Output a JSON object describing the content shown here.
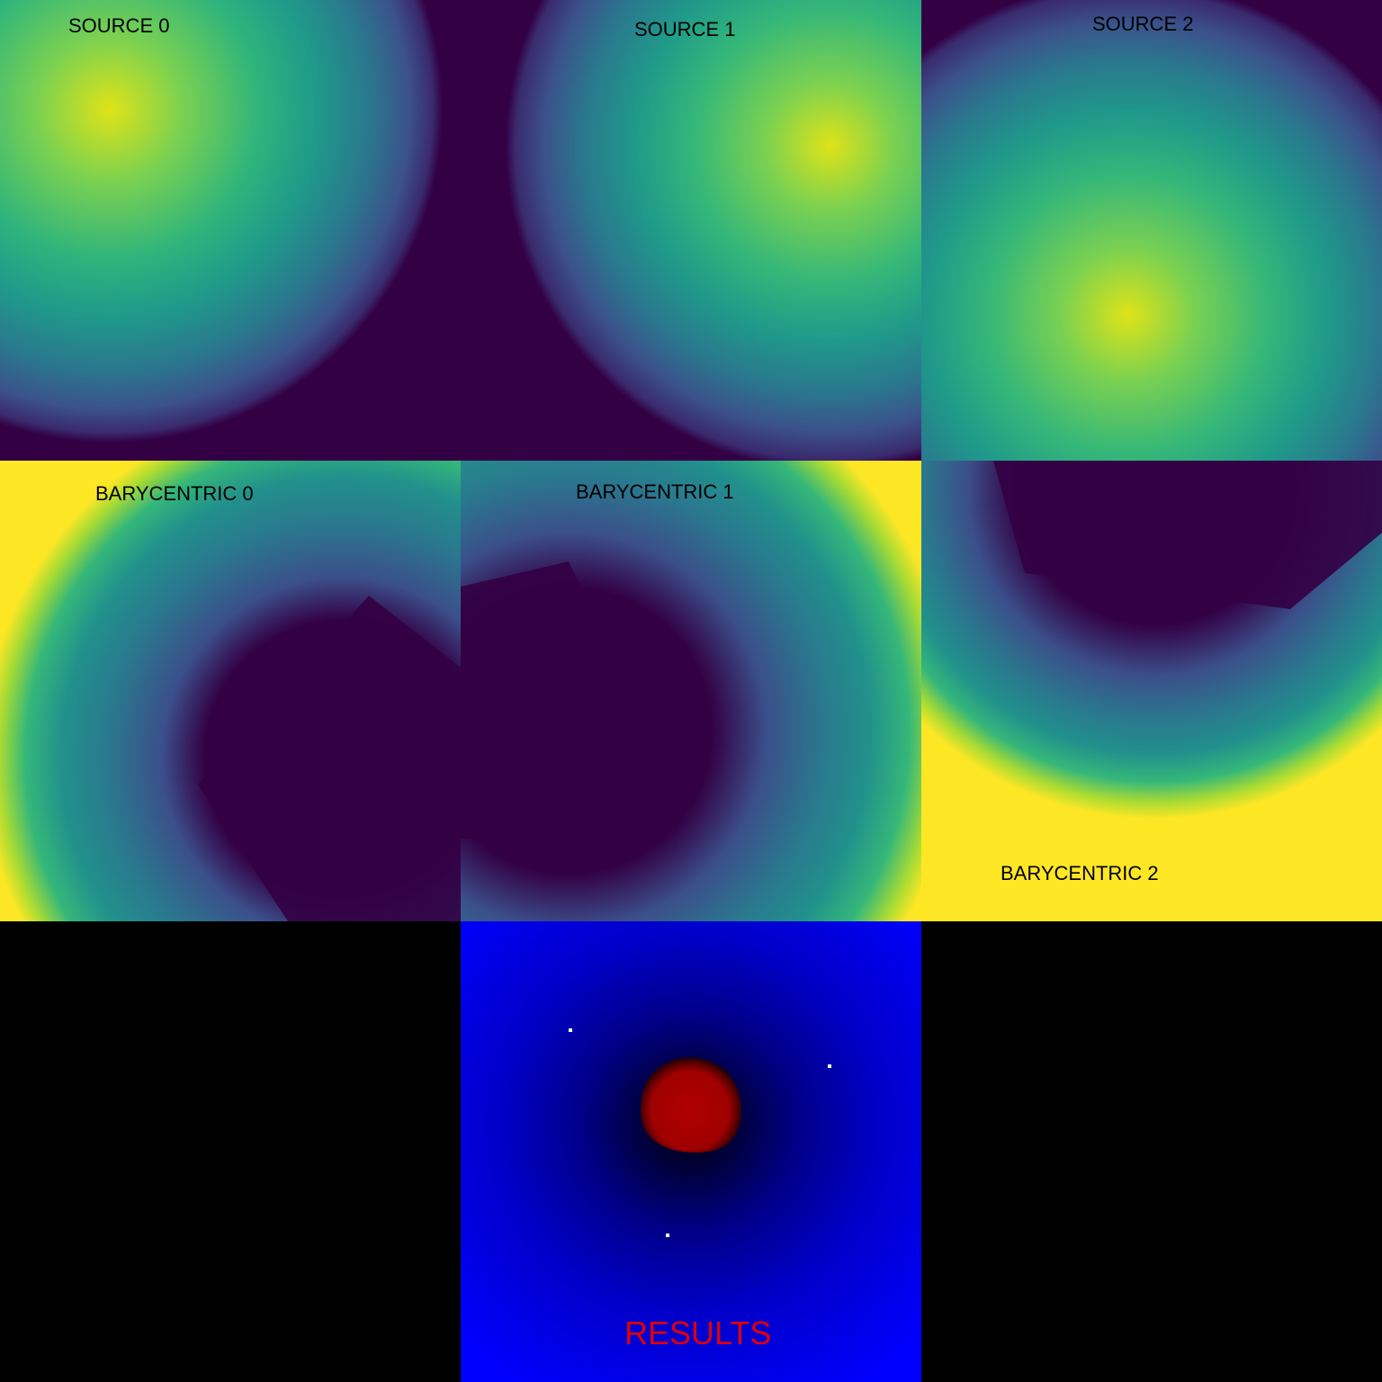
{
  "palette": {
    "viridis_dark": "#330044",
    "viridis_mid": "#21918c",
    "viridis_bright": "#fde725",
    "result_background": "#0000ff",
    "result_blob": "#b00000",
    "result_label_color": "#e10000",
    "empty_panel": "#000000",
    "marker_color": "#ffffff"
  },
  "sources": [
    {
      "label": "SOURCE 0"
    },
    {
      "label": "SOURCE 1"
    },
    {
      "label": "SOURCE 2"
    }
  ],
  "barycentric": [
    {
      "label": "BARYCENTRIC 0"
    },
    {
      "label": "BARYCENTRIC 1"
    },
    {
      "label": "BARYCENTRIC 2"
    }
  ],
  "results": {
    "label": "RESULTS"
  }
}
